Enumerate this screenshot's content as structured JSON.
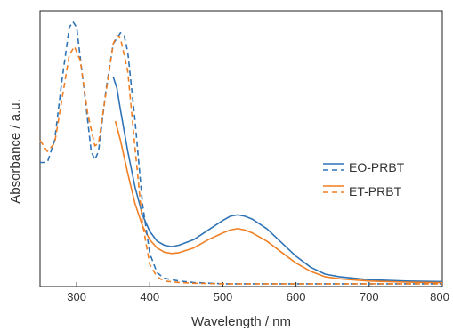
{
  "chart_data": {
    "type": "line",
    "title": "",
    "xlabel": "Wavelength / nm",
    "ylabel": "Absorbance / a.u.",
    "xlim": [
      250,
      800
    ],
    "ylim": [
      0,
      1.0
    ],
    "x_ticks": [
      300,
      400,
      500,
      600,
      700,
      800
    ],
    "x_tick_labels": [
      "300",
      "400",
      "500",
      "600",
      "700",
      "800"
    ],
    "y_tick_labels": "none",
    "grid": false,
    "legend_position": "right",
    "colors": {
      "EO-PRBT": "#2f73b5",
      "ET-PRBT": "#f07f23"
    },
    "series": [
      {
        "name": "EO-PRBT",
        "style": "solid",
        "color": "#2f73b5",
        "x": [
          350,
          355,
          360,
          370,
          380,
          390,
          400,
          410,
          420,
          430,
          440,
          460,
          480,
          500,
          510,
          520,
          530,
          540,
          560,
          580,
          600,
          620,
          640,
          660,
          700,
          750,
          800
        ],
        "y": [
          0.76,
          0.72,
          0.64,
          0.49,
          0.36,
          0.26,
          0.2,
          0.165,
          0.15,
          0.145,
          0.15,
          0.17,
          0.205,
          0.24,
          0.255,
          0.26,
          0.255,
          0.245,
          0.21,
          0.16,
          0.11,
          0.07,
          0.045,
          0.035,
          0.025,
          0.02,
          0.018
        ]
      },
      {
        "name": "ET-PRBT",
        "style": "solid",
        "color": "#f07f23",
        "x": [
          353,
          360,
          370,
          380,
          390,
          400,
          410,
          420,
          430,
          440,
          460,
          480,
          500,
          510,
          520,
          530,
          540,
          560,
          580,
          600,
          620,
          640,
          660,
          700,
          750,
          800
        ],
        "y": [
          0.6,
          0.53,
          0.41,
          0.3,
          0.22,
          0.17,
          0.14,
          0.125,
          0.12,
          0.123,
          0.14,
          0.17,
          0.195,
          0.205,
          0.21,
          0.205,
          0.195,
          0.165,
          0.125,
          0.085,
          0.055,
          0.035,
          0.028,
          0.02,
          0.016,
          0.014
        ]
      },
      {
        "name": "EO-PRBT",
        "style": "dashed",
        "color": "#2f73b5",
        "x": [
          250,
          260,
          270,
          280,
          290,
          295,
          300,
          310,
          320,
          325,
          330,
          340,
          350,
          360,
          365,
          370,
          380,
          390,
          400,
          410,
          420,
          440,
          460,
          500,
          800
        ],
        "y": [
          0.45,
          0.45,
          0.53,
          0.75,
          0.94,
          0.96,
          0.94,
          0.72,
          0.49,
          0.46,
          0.49,
          0.71,
          0.88,
          0.92,
          0.91,
          0.85,
          0.6,
          0.3,
          0.12,
          0.05,
          0.03,
          0.02,
          0.015,
          0.01,
          0.01
        ]
      },
      {
        "name": "ET-PRBT",
        "style": "dashed",
        "color": "#f07f23",
        "x": [
          250,
          260,
          270,
          280,
          290,
          297,
          305,
          315,
          325,
          330,
          340,
          350,
          355,
          360,
          370,
          380,
          390,
          400,
          410,
          420,
          440,
          460,
          500,
          800
        ],
        "y": [
          0.53,
          0.49,
          0.52,
          0.68,
          0.84,
          0.87,
          0.82,
          0.63,
          0.51,
          0.52,
          0.7,
          0.88,
          0.91,
          0.9,
          0.78,
          0.5,
          0.23,
          0.08,
          0.035,
          0.02,
          0.015,
          0.012,
          0.01,
          0.01
        ]
      }
    ]
  },
  "legend": [
    {
      "label": "EO-PRBT",
      "color": "#2f73b5"
    },
    {
      "label": "ET-PRBT",
      "color": "#f07f23"
    }
  ]
}
